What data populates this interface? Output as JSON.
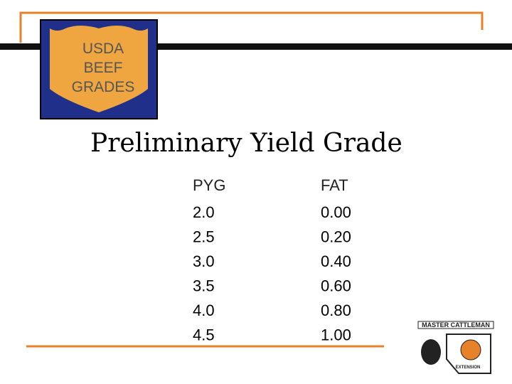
{
  "badge": {
    "lines": [
      "USDA",
      "BEEF",
      "GRADES"
    ]
  },
  "title": "Preliminary Yield Grade",
  "table": {
    "header": [
      "PYG",
      "FAT"
    ],
    "rows": [
      [
        "2.0",
        "0.00"
      ],
      [
        "2.5",
        "0.20"
      ],
      [
        "3.0",
        "0.40"
      ],
      [
        "3.5",
        "0.60"
      ],
      [
        "4.0",
        "0.80"
      ],
      [
        "4.5",
        "1.00"
      ]
    ]
  },
  "logo": {
    "name": "Master Cattleman",
    "sub": "Extension"
  }
}
